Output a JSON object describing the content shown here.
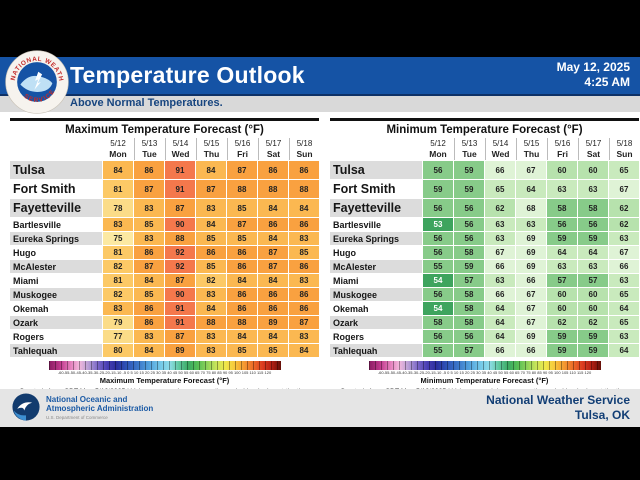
{
  "header": {
    "title": "Temperature Outlook",
    "subtitle": "Above Normal Temperatures.",
    "date": "May 12, 2025",
    "time": "4:25 AM",
    "accent_blue": "#1553A5",
    "seal_name": "nws-seal"
  },
  "columns": [
    {
      "date": "5/12",
      "day": "Mon"
    },
    {
      "date": "5/13",
      "day": "Tue"
    },
    {
      "date": "5/14",
      "day": "Wed"
    },
    {
      "date": "5/15",
      "day": "Thu"
    },
    {
      "date": "5/16",
      "day": "Fri"
    },
    {
      "date": "5/17",
      "day": "Sat"
    },
    {
      "date": "5/18",
      "day": "Sun"
    }
  ],
  "colorbar_ticks": "-60-55-50-45-40-35-30-25-20-15-10 -5 0 5 10 15 20 25 30 35 40 45 50 55 60 65 70 75 80 85 90 95 100 105 110 115 120",
  "chart_data": [
    {
      "type": "heatmap",
      "title": "Maximum Temperature Forecast (°F)",
      "colorbar_label": "Maximum Temperature Forecast (°F)",
      "created": "Created: 4 am CDT Mon 5/12/2025  |  Values are maximums over the period beginning at the time shown.",
      "categories": [
        "5/12 Mon",
        "5/13 Tue",
        "5/14 Wed",
        "5/15 Thu",
        "5/16 Fri",
        "5/17 Sat",
        "5/18 Sun"
      ],
      "scale": [
        {
          "min": 90,
          "color": "#F4784C",
          "text": "#222222"
        },
        {
          "min": 86,
          "color": "#F9A140",
          "text": "#222222"
        },
        {
          "min": 83,
          "color": "#FBB851",
          "text": "#222222"
        },
        {
          "min": 80,
          "color": "#FCC966",
          "text": "#222222"
        },
        {
          "min": 77,
          "color": "#FBDC88",
          "text": "#222222"
        },
        {
          "min": 0,
          "color": "#FCE9A2",
          "text": "#222222"
        }
      ],
      "rows": [
        {
          "city": "Tulsa",
          "major": true,
          "values": [
            84,
            86,
            91,
            84,
            87,
            86,
            86
          ]
        },
        {
          "city": "Fort Smith",
          "major": true,
          "values": [
            81,
            87,
            91,
            87,
            88,
            88,
            88
          ]
        },
        {
          "city": "Fayetteville",
          "major": true,
          "values": [
            78,
            83,
            87,
            83,
            85,
            84,
            84
          ]
        },
        {
          "city": "Bartlesville",
          "major": false,
          "values": [
            83,
            85,
            90,
            84,
            87,
            86,
            86
          ]
        },
        {
          "city": "Eureka Springs",
          "major": false,
          "values": [
            75,
            83,
            88,
            85,
            85,
            84,
            83
          ]
        },
        {
          "city": "Hugo",
          "major": false,
          "values": [
            81,
            86,
            92,
            86,
            86,
            87,
            85
          ]
        },
        {
          "city": "McAlester",
          "major": false,
          "values": [
            82,
            87,
            92,
            85,
            86,
            87,
            86
          ]
        },
        {
          "city": "Miami",
          "major": false,
          "values": [
            81,
            84,
            87,
            82,
            84,
            84,
            83
          ]
        },
        {
          "city": "Muskogee",
          "major": false,
          "values": [
            82,
            85,
            90,
            83,
            86,
            86,
            86
          ]
        },
        {
          "city": "Okemah",
          "major": false,
          "values": [
            83,
            86,
            91,
            84,
            86,
            86,
            86
          ]
        },
        {
          "city": "Ozark",
          "major": false,
          "values": [
            79,
            86,
            91,
            88,
            88,
            89,
            87
          ]
        },
        {
          "city": "Rogers",
          "major": false,
          "values": [
            77,
            83,
            87,
            83,
            84,
            84,
            83
          ]
        },
        {
          "city": "Tahlequah",
          "major": false,
          "values": [
            80,
            84,
            89,
            83,
            85,
            85,
            84
          ]
        }
      ]
    },
    {
      "type": "heatmap",
      "title": "Minimum Temperature Forecast (°F)",
      "colorbar_label": "Minimum Temperature Forecast (°F)",
      "created": "Created: 4 am CDT Mon 5/12/2025  |  Values are minimums over the period beginning at the time shown.",
      "categories": [
        "5/12 Mon",
        "5/13 Tue",
        "5/14 Wed",
        "5/15 Thu",
        "5/16 Fri",
        "5/17 Sat",
        "5/18 Sun"
      ],
      "scale": [
        {
          "min": 66,
          "color": "#DFF3D6",
          "text": "#222222"
        },
        {
          "min": 63,
          "color": "#C9EABD",
          "text": "#222222"
        },
        {
          "min": 60,
          "color": "#B7E2AD",
          "text": "#222222"
        },
        {
          "min": 55,
          "color": "#87CB89",
          "text": "#222222"
        },
        {
          "min": 0,
          "color": "#3EA45E",
          "text": "#FFFFFF"
        }
      ],
      "rows": [
        {
          "city": "Tulsa",
          "major": true,
          "values": [
            56,
            59,
            66,
            67,
            60,
            60,
            65
          ]
        },
        {
          "city": "Fort Smith",
          "major": true,
          "values": [
            59,
            59,
            65,
            64,
            63,
            63,
            67
          ]
        },
        {
          "city": "Fayetteville",
          "major": true,
          "values": [
            56,
            56,
            62,
            68,
            58,
            58,
            62
          ]
        },
        {
          "city": "Bartlesville",
          "major": false,
          "values": [
            53,
            56,
            63,
            63,
            56,
            56,
            62
          ]
        },
        {
          "city": "Eureka Springs",
          "major": false,
          "values": [
            56,
            56,
            63,
            69,
            59,
            59,
            63
          ]
        },
        {
          "city": "Hugo",
          "major": false,
          "values": [
            56,
            58,
            67,
            69,
            64,
            64,
            67
          ]
        },
        {
          "city": "McAlester",
          "major": false,
          "values": [
            55,
            59,
            66,
            69,
            63,
            63,
            66
          ]
        },
        {
          "city": "Miami",
          "major": false,
          "values": [
            54,
            57,
            63,
            66,
            57,
            57,
            63
          ]
        },
        {
          "city": "Muskogee",
          "major": false,
          "values": [
            56,
            58,
            66,
            67,
            60,
            60,
            65
          ]
        },
        {
          "city": "Okemah",
          "major": false,
          "values": [
            54,
            58,
            64,
            67,
            60,
            60,
            64
          ]
        },
        {
          "city": "Ozark",
          "major": false,
          "values": [
            58,
            58,
            64,
            67,
            62,
            62,
            65
          ]
        },
        {
          "city": "Rogers",
          "major": false,
          "values": [
            56,
            56,
            64,
            69,
            59,
            59,
            63
          ]
        },
        {
          "city": "Tahlequah",
          "major": false,
          "values": [
            55,
            57,
            66,
            66,
            59,
            59,
            64
          ]
        }
      ]
    }
  ],
  "footer": {
    "agency_line1": "National Oceanic and",
    "agency_line2": "Atmospheric Administration",
    "agency_sub": "U.S. Department of Commerce",
    "org": "National Weather Service",
    "office": "Tulsa, OK"
  }
}
